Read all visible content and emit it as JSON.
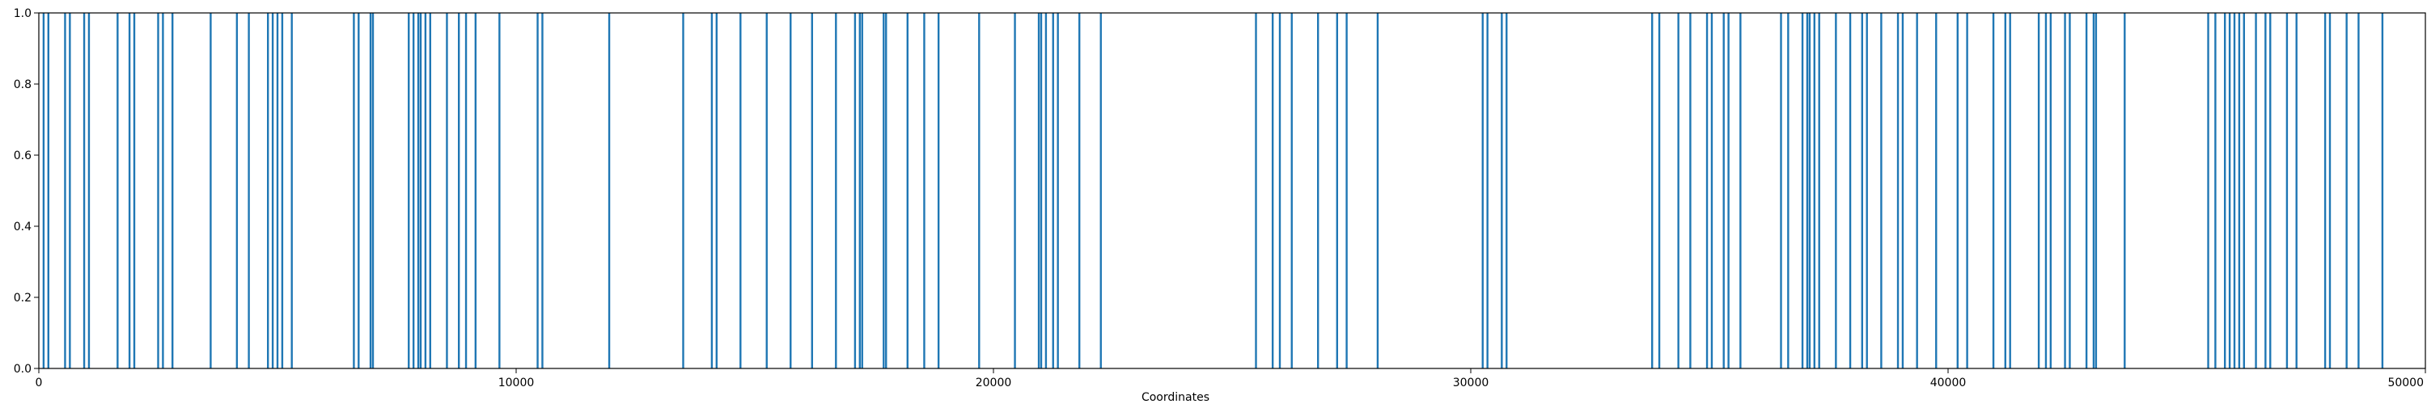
{
  "chart_data": {
    "type": "bar",
    "title": "",
    "xlabel": "Coordinates",
    "ylabel": "",
    "xlim": [
      0,
      50000
    ],
    "ylim": [
      0.0,
      1.0
    ],
    "grid": false,
    "legend": "none",
    "series_color": "#1f77b4",
    "x_ticks": [
      0,
      10000,
      20000,
      30000,
      40000,
      50000
    ],
    "x_tick_labels": [
      "0",
      "10000",
      "20000",
      "30000",
      "40000",
      "50000"
    ],
    "y_ticks": [
      0.0,
      0.2,
      0.4,
      0.6,
      0.8,
      1.0
    ],
    "y_tick_labels": [
      "0.0",
      "0.2",
      "0.4",
      "0.6",
      "0.8",
      "1.0"
    ],
    "series": [
      {
        "values": 1.0,
        "x": [
          100,
          200,
          550,
          650,
          950,
          1050,
          1650,
          1900,
          2000,
          2500,
          2600,
          2800,
          3600,
          4150,
          4400,
          4800,
          4900,
          5000,
          5100,
          5300,
          6600,
          6700,
          6950,
          7000,
          7750,
          7850,
          7950,
          8000,
          8100,
          8200,
          8550,
          8800,
          8950,
          9150,
          9650,
          10450,
          10550,
          11950,
          13500,
          14100,
          14200,
          14700,
          15250,
          15750,
          16200,
          16700,
          17100,
          17200,
          17250,
          17700,
          17750,
          18200,
          18550,
          18850,
          19700,
          20450,
          20950,
          21000,
          21100,
          21250,
          21350,
          21800,
          22250,
          25500,
          25850,
          26000,
          26250,
          26800,
          27200,
          27400,
          28050,
          30250,
          30350,
          30650,
          30750,
          33800,
          33950,
          34350,
          34600,
          34950,
          35050,
          35300,
          35400,
          35650,
          36500,
          36650,
          36950,
          37050,
          37100,
          37200,
          37300,
          37650,
          37950,
          38200,
          38300,
          38600,
          38950,
          39050,
          39350,
          39750,
          40200,
          40400,
          40950,
          41200,
          41300,
          41900,
          42050,
          42150,
          42450,
          42550,
          42900,
          43050,
          43100,
          43700,
          45450,
          45600,
          45800,
          45900,
          46000,
          46100,
          46200,
          46450,
          46650,
          46750,
          47100,
          47300,
          47900,
          48000,
          48350,
          48600,
          49100
        ]
      }
    ]
  }
}
